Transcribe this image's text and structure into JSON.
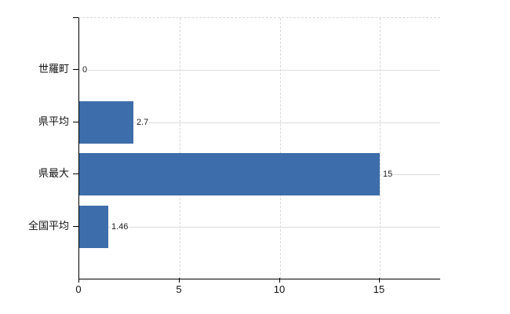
{
  "chart_data": {
    "type": "bar",
    "orientation": "horizontal",
    "title": "",
    "xlabel": "",
    "ylabel": "",
    "categories": [
      "世羅町",
      "県平均",
      "県最大",
      "全国平均"
    ],
    "values": [
      0,
      2.7,
      15,
      1.46
    ],
    "value_labels": [
      "0",
      "2.7",
      "15",
      "1.46"
    ],
    "x_ticks": [
      0,
      5,
      10,
      15
    ],
    "x_tick_labels": [
      "0",
      "5",
      "10",
      "15"
    ],
    "xlim": [
      0,
      18
    ],
    "grid": true,
    "legend": false,
    "bar_color": "#3e6dab",
    "gridline_color": "#d9ddd9",
    "axis_color": "#000000",
    "text_color": "#111111",
    "background_color": "#ffffff"
  }
}
